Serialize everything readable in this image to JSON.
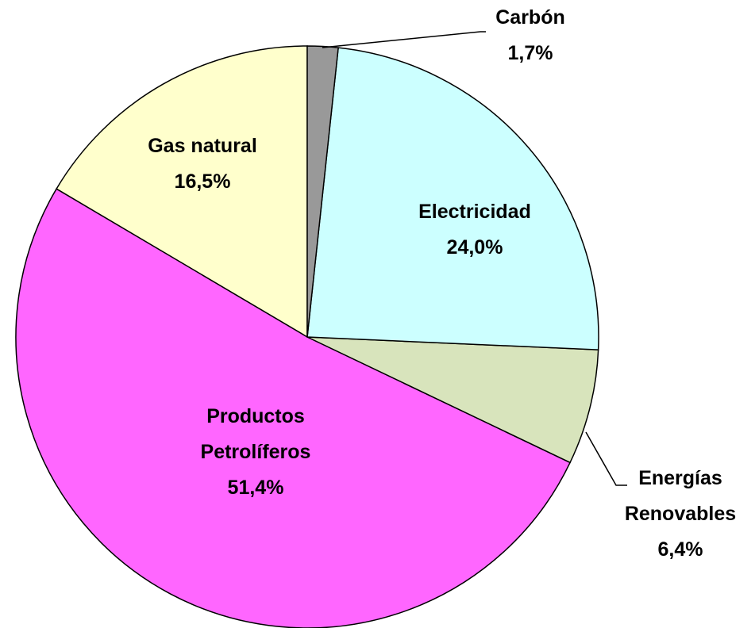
{
  "chart_data": {
    "type": "pie",
    "categories": [
      "Carbón",
      "Electricidad",
      "Energías Renovables",
      "Productos Petrolíferos",
      "Gas natural"
    ],
    "values": [
      1.7,
      24.0,
      6.4,
      51.4,
      16.5
    ],
    "value_labels": [
      "1,7%",
      "24,0%",
      "6,4%",
      "51,4%",
      "16,5%"
    ],
    "colors": [
      "#999999",
      "#ccffff",
      "#d8e4bc",
      "#ff66ff",
      "#ffffcc"
    ]
  }
}
